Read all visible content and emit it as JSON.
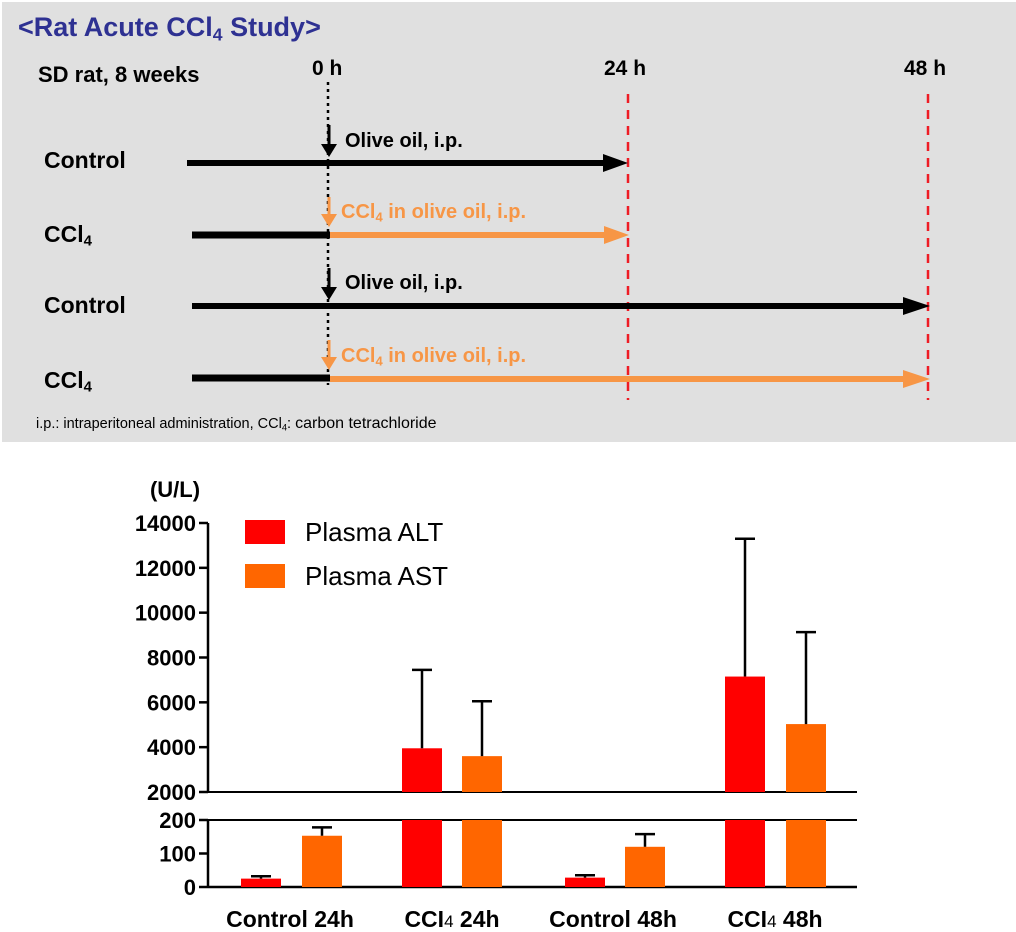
{
  "colors": {
    "panel_bg": "#e0e0e0",
    "title": "#2e3192",
    "black": "#000000",
    "cc_orange": "#f79646",
    "dashed_red": "#ee1c25",
    "alt_red": "#ff0000",
    "ast_orange": "#ff6600"
  },
  "study": {
    "title_pre": "<Rat Acute CCl",
    "title_sub": "4",
    "title_post": " Study>",
    "animal": "SD rat, 8 weeks",
    "timepoints": [
      "0 h",
      "24 h",
      "48 h"
    ],
    "rows": [
      {
        "group": "Control",
        "group_sub": "",
        "dosing": "Olive oil, i.p.",
        "dosing_pre": "",
        "dosing_sub": "",
        "end": "24 h",
        "kind": "control"
      },
      {
        "group": "CCl",
        "group_sub": "4",
        "dosing": "",
        "dosing_pre": "CCl",
        "dosing_sub": "4",
        "dosing_post": " in olive oil, i.p.",
        "end": "24 h",
        "kind": "ccl4"
      },
      {
        "group": "Control",
        "group_sub": "",
        "dosing": "Olive oil, i.p.",
        "dosing_pre": "",
        "dosing_sub": "",
        "end": "48 h",
        "kind": "control"
      },
      {
        "group": "CCl",
        "group_sub": "4",
        "dosing": "",
        "dosing_pre": "CCl",
        "dosing_sub": "4",
        "dosing_post": " in olive oil, i.p.",
        "end": "48 h",
        "kind": "ccl4"
      }
    ],
    "footnote_pre": "i.p.: intraperitoneal administration, CCl",
    "footnote_sub": "4",
    "footnote_mid": ": ",
    "footnote_post": "carbon tetrachloride"
  },
  "chart_data": {
    "type": "bar",
    "ylabel": "(U/L)",
    "categories": [
      "Control 24h",
      "CCl4 24h",
      "Control 48h",
      "CCl4 48h"
    ],
    "category_parts": [
      {
        "pre": "Control",
        "sub": "",
        "post": " 24h"
      },
      {
        "pre": "CCI",
        "sub": "4",
        "post": " 24h"
      },
      {
        "pre": "Control",
        "sub": "",
        "post": " 48h"
      },
      {
        "pre": "CCI",
        "sub": "4",
        "post": " 48h"
      }
    ],
    "series": [
      {
        "name": "Plasma ALT",
        "color": "#ff0000",
        "values": [
          25,
          3950,
          28,
          7150
        ],
        "error": [
          7,
          3500,
          7,
          6150
        ]
      },
      {
        "name": "Plasma AST",
        "color": "#ff6600",
        "values": [
          153,
          3600,
          120,
          5030
        ],
        "error": [
          25,
          2450,
          38,
          4100
        ]
      }
    ],
    "broken_axis": {
      "lower": {
        "range": [
          0,
          200
        ],
        "ticks": [
          0,
          100,
          200
        ]
      },
      "upper": {
        "range": [
          2000,
          14000
        ],
        "ticks": [
          2000,
          4000,
          6000,
          8000,
          10000,
          12000,
          14000
        ]
      }
    },
    "legend_position": "top-left"
  }
}
